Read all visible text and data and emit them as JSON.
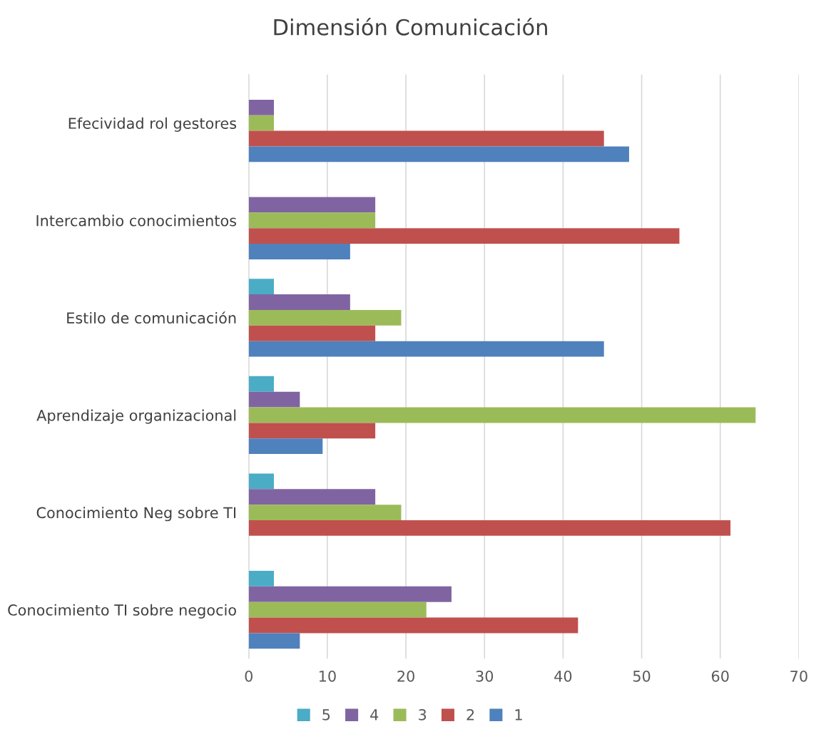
{
  "chart_data": {
    "type": "bar",
    "orientation": "horizontal",
    "title": "Dimensión Comunicación",
    "categories": [
      "Efecividad rol gestores",
      "Intercambio conocimientos",
      "Estilo de comunicación",
      "Aprendizaje organizacional",
      "Conocimiento Neg sobre TI",
      "Conocimiento TI sobre negocio"
    ],
    "series": [
      {
        "name": "5",
        "color": "#4bacc6",
        "values": [
          0,
          0,
          3.2,
          3.2,
          3.2,
          3.2
        ]
      },
      {
        "name": "4",
        "color": "#8064a2",
        "values": [
          3.2,
          16.1,
          12.9,
          6.5,
          16.1,
          25.8
        ]
      },
      {
        "name": "3",
        "color": "#9bbb59",
        "values": [
          3.2,
          16.1,
          19.4,
          64.5,
          19.4,
          22.6
        ]
      },
      {
        "name": "2",
        "color": "#c0504d",
        "values": [
          45.2,
          54.8,
          16.1,
          16.1,
          61.3,
          41.9
        ]
      },
      {
        "name": "1",
        "color": "#4f81bd",
        "values": [
          48.4,
          12.9,
          45.2,
          9.4,
          0,
          6.5
        ]
      }
    ],
    "xlim": [
      0,
      70
    ],
    "xticks": [
      0,
      10,
      20,
      30,
      40,
      50,
      60,
      70
    ],
    "grid": "x",
    "legend": "bottom"
  }
}
